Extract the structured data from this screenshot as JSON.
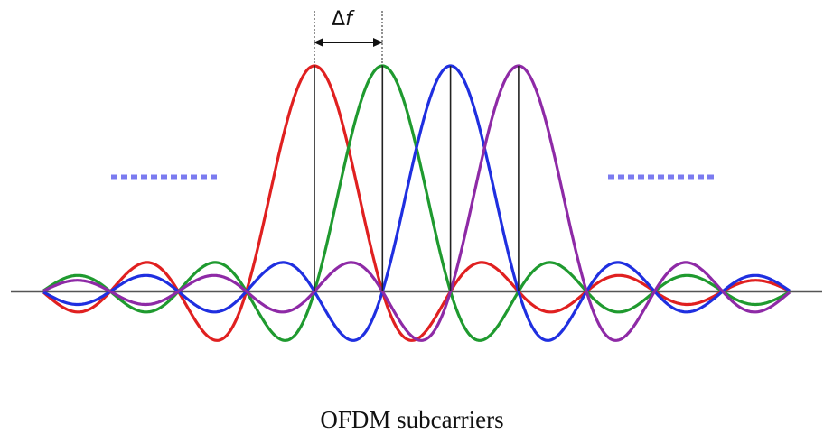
{
  "caption": "OFDM subcarriers",
  "spacing_label": {
    "delta": "Δ",
    "symbol": "f"
  },
  "colors": {
    "background": "#ffffff",
    "axis": "#555555",
    "peak_lines": "#222222",
    "dots": "#7b7bf0",
    "carriers": [
      "#e02020",
      "#1f9a2f",
      "#1f2fe0",
      "#8e2aa6"
    ]
  },
  "subcarriers": [
    {
      "name": "red-subcarrier",
      "color": "#e02020",
      "offset": 0
    },
    {
      "name": "green-subcarrier",
      "color": "#1f9a2f",
      "offset": 1
    },
    {
      "name": "blue-subcarrier",
      "color": "#1f2fe0",
      "offset": 2
    },
    {
      "name": "purple-subcarrier",
      "color": "#8e2aa6",
      "offset": 3
    }
  ],
  "ellipsis_count": 2
}
